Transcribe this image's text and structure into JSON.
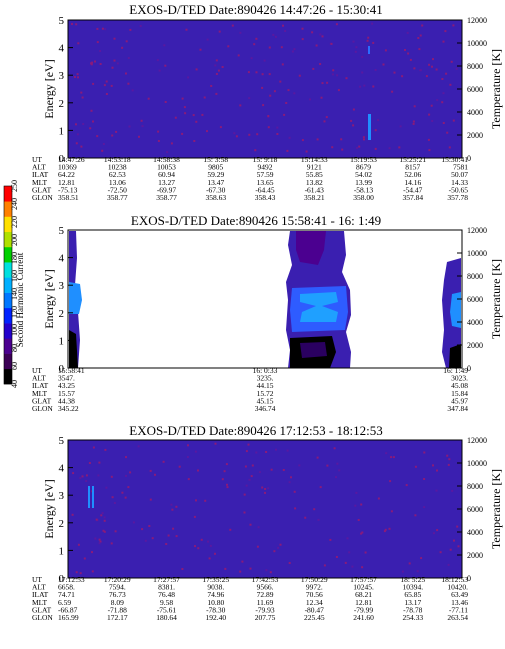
{
  "colors": {
    "background_field": "#3a1fb0",
    "speckle": "#8a1a7a",
    "empty": "#ffffff"
  },
  "colorbar": {
    "label": "Second Harmonic Current",
    "ticks": [
      "40",
      "60",
      "80",
      "100",
      "120",
      "140",
      "160",
      "180",
      "200",
      "220",
      "240",
      "250"
    ],
    "colors": [
      "#000000",
      "#3b0055",
      "#4b0090",
      "#2200cc",
      "#0022ff",
      "#0077ff",
      "#00b0ff",
      "#00e0e0",
      "#00d000",
      "#b0e000",
      "#ffe000",
      "#ff8000",
      "#ff0000"
    ]
  },
  "chart_data": [
    {
      "type": "heatmap",
      "title": "EXOS-D/TED   Date:890426   14:47:26 - 15:30:41",
      "ylabel": "Energy [eV]",
      "y2label": "Temperature [K]",
      "ylim": [
        0,
        5
      ],
      "y2lim": [
        0,
        12000
      ],
      "yticks": [
        "0",
        "1",
        "2",
        "3",
        "4",
        "5"
      ],
      "y2ticks": [
        "0",
        "2000",
        "4000",
        "6000",
        "8000",
        "10000",
        "12000"
      ],
      "table": [
        {
          "name": "UT",
          "values": [
            "14:47:26",
            "14:53:18",
            "14:58:38",
            "15: 3:58",
            "15: 9:18",
            "15:14:33",
            "15:19:53",
            "15:25:21",
            "15:30:41"
          ]
        },
        {
          "name": "ALT",
          "values": [
            "10369",
            "10238",
            "10053",
            "9805",
            "9492",
            "9121",
            "8679",
            "8157",
            "7581"
          ]
        },
        {
          "name": "ILAT",
          "values": [
            "64.22",
            "62.53",
            "60.94",
            "59.29",
            "57.59",
            "55.85",
            "54.02",
            "52.06",
            "50.07"
          ]
        },
        {
          "name": "MLT",
          "values": [
            "12.81",
            "13.06",
            "13.27",
            "13.47",
            "13.65",
            "13.82",
            "13.99",
            "14.16",
            "14.33"
          ]
        },
        {
          "name": "GLAT",
          "values": [
            "-75.13",
            "-72.50",
            "-69.97",
            "-67.30",
            "-64.45",
            "-61.43",
            "-58.13",
            "-54.47",
            "-50.65"
          ]
        },
        {
          "name": "GLON",
          "values": [
            "358.51",
            "358.77",
            "358.77",
            "358.63",
            "358.43",
            "358.21",
            "358.00",
            "357.84",
            "357.78"
          ]
        }
      ]
    },
    {
      "type": "heatmap",
      "title": "EXOS-D/TED   Date:890426   15:58:41 - 16: 1:49",
      "ylabel": "Energy [eV]",
      "y2label": "Temperature [K]",
      "ylim": [
        0,
        5
      ],
      "y2lim": [
        0,
        12000
      ],
      "yticks": [
        "0",
        "1",
        "2",
        "3",
        "4",
        "5"
      ],
      "y2ticks": [
        "0",
        "2000",
        "4000",
        "6000",
        "8000",
        "10000",
        "12000"
      ],
      "table": [
        {
          "name": "UT",
          "values": [
            "15:58:41",
            "16: 0:33",
            "16: 1:49"
          ]
        },
        {
          "name": "ALT",
          "values": [
            "3547.",
            "3235.",
            "3023."
          ]
        },
        {
          "name": "ILAT",
          "values": [
            "43.25",
            "44.15",
            "45.08"
          ]
        },
        {
          "name": "MLT",
          "values": [
            "15.57",
            "15.72",
            "15.84"
          ]
        },
        {
          "name": "GLAT",
          "values": [
            "44.38",
            "45.15",
            "45.97"
          ]
        },
        {
          "name": "GLON",
          "values": [
            "345.22",
            "346.74",
            "347.84"
          ]
        }
      ]
    },
    {
      "type": "heatmap",
      "title": "EXOS-D/TED   Date:890426   17:12:53 - 18:12:53",
      "ylabel": "Energy [eV]",
      "y2label": "Temperature [K]",
      "ylim": [
        0,
        5
      ],
      "y2lim": [
        0,
        12000
      ],
      "yticks": [
        "0",
        "1",
        "2",
        "3",
        "4",
        "5"
      ],
      "y2ticks": [
        "0",
        "2000",
        "4000",
        "6000",
        "8000",
        "10000",
        "12000"
      ],
      "table": [
        {
          "name": "UT",
          "values": [
            "17:12:53",
            "17:20:29",
            "17:27:57",
            "17:35:25",
            "17:42:53",
            "17:50:29",
            "17:57:57",
            "18: 5:25",
            "18:12:53"
          ]
        },
        {
          "name": "ALT",
          "values": [
            "6658.",
            "7594.",
            "8381.",
            "9038.",
            "9566.",
            "9972.",
            "10245.",
            "10394.",
            "10420."
          ]
        },
        {
          "name": "ILAT",
          "values": [
            "74.71",
            "76.73",
            "76.48",
            "74.96",
            "72.89",
            "70.56",
            "68.21",
            "65.85",
            "63.49"
          ]
        },
        {
          "name": "MLT",
          "values": [
            "6.59",
            "8.09",
            "9.58",
            "10.80",
            "11.69",
            "12.34",
            "12.81",
            "13.17",
            "13.46"
          ]
        },
        {
          "name": "GLAT",
          "values": [
            "-66.87",
            "-71.88",
            "-75.61",
            "-78.30",
            "-79.93",
            "-80.47",
            "-79.99",
            "-78.78",
            "-77.11"
          ]
        },
        {
          "name": "GLON",
          "values": [
            "165.99",
            "172.17",
            "180.64",
            "192.40",
            "207.75",
            "225.45",
            "241.60",
            "254.33",
            "263.54"
          ]
        }
      ]
    }
  ]
}
